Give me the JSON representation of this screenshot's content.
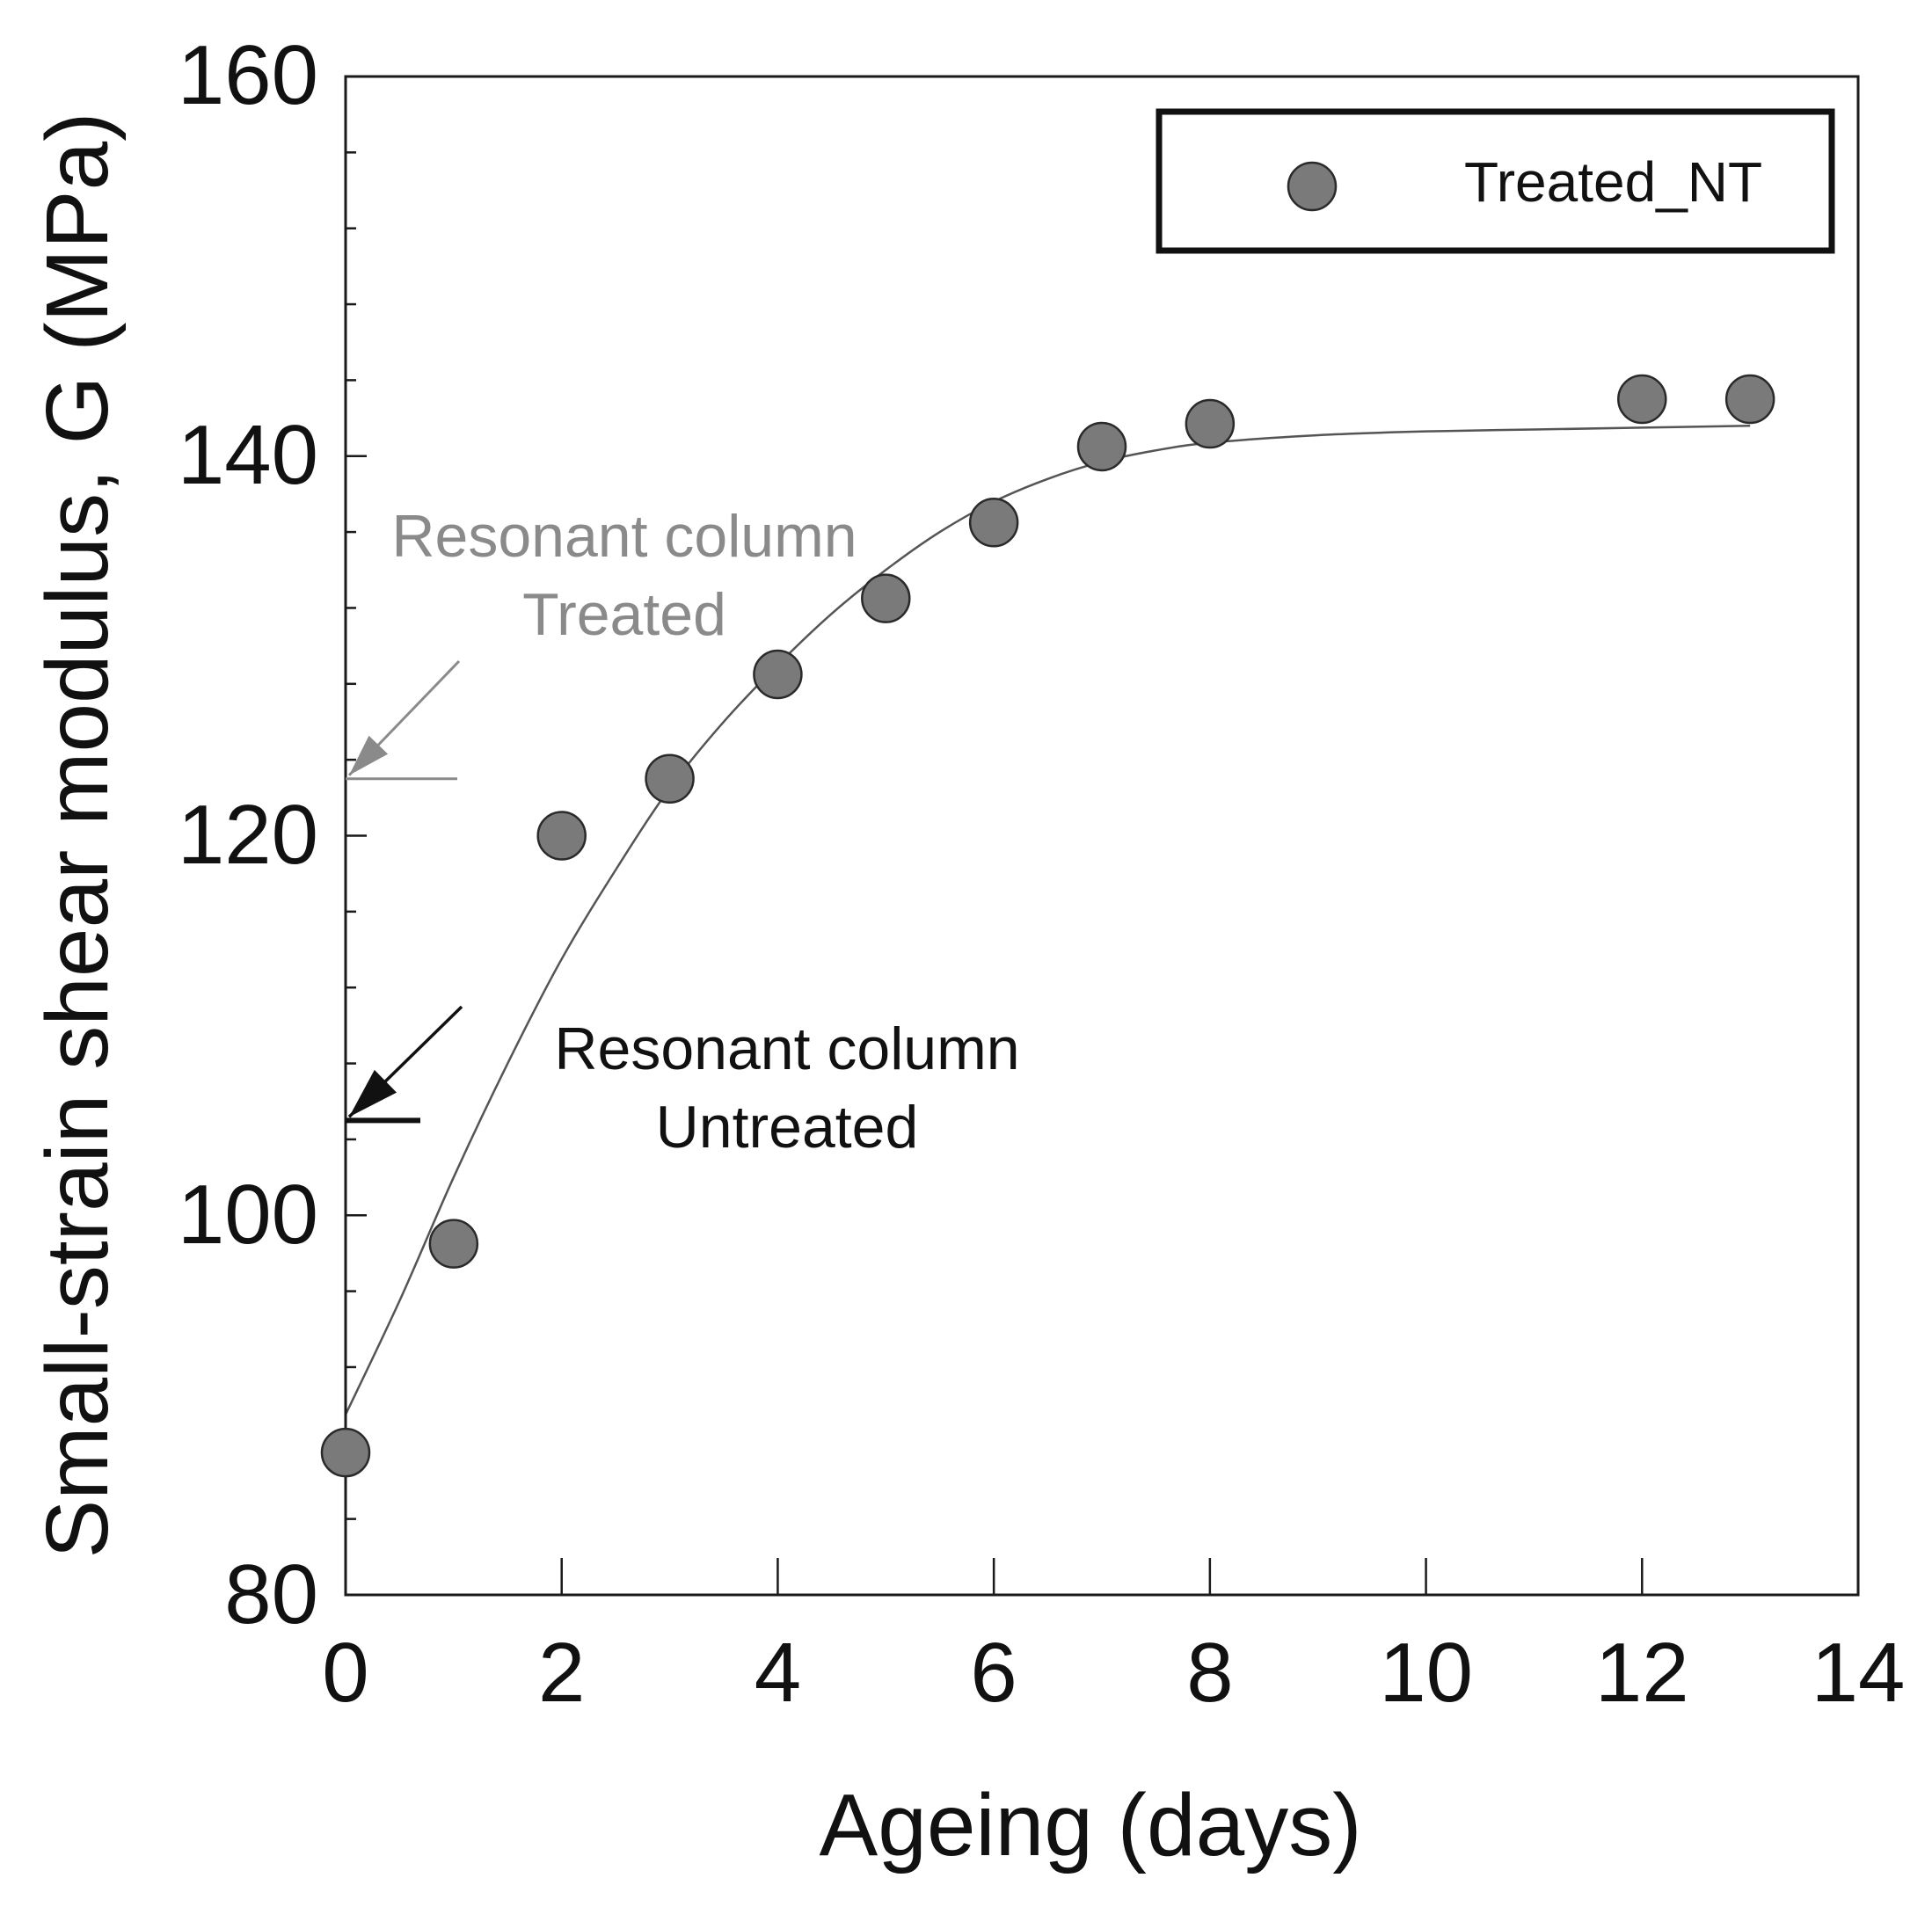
{
  "chart_data": {
    "type": "scatter",
    "xlabel": "Ageing (days)",
    "ylabel": "Small-strain shear modulus, G (MPa)",
    "xlim": [
      0,
      14
    ],
    "ylim": [
      80,
      160
    ],
    "xticks": [
      "0",
      "2",
      "4",
      "6",
      "8",
      "10",
      "12",
      "14"
    ],
    "yticks": [
      "80",
      "100",
      "120",
      "140",
      "160"
    ],
    "legend_position": "top-right",
    "series": [
      {
        "name": "Treated_NT",
        "marker": "circle",
        "color": "#7a7a7a",
        "points": [
          {
            "x": 0,
            "y": 87.5
          },
          {
            "x": 1,
            "y": 98.5
          },
          {
            "x": 2,
            "y": 120
          },
          {
            "x": 3,
            "y": 123
          },
          {
            "x": 4,
            "y": 128.5
          },
          {
            "x": 5,
            "y": 132.5
          },
          {
            "x": 6,
            "y": 136.5
          },
          {
            "x": 7,
            "y": 140.5
          },
          {
            "x": 8,
            "y": 141.7
          },
          {
            "x": 12,
            "y": 143
          },
          {
            "x": 13,
            "y": 143
          }
        ]
      }
    ],
    "fit_curve": {
      "color": "#555555",
      "points": [
        {
          "x": 0,
          "y": 89.5
        },
        {
          "x": 0.5,
          "y": 95.5
        },
        {
          "x": 1,
          "y": 102
        },
        {
          "x": 1.5,
          "y": 108
        },
        {
          "x": 2,
          "y": 113.5
        },
        {
          "x": 2.5,
          "y": 118.2
        },
        {
          "x": 3,
          "y": 122.5
        },
        {
          "x": 3.5,
          "y": 126
        },
        {
          "x": 4,
          "y": 129
        },
        {
          "x": 4.5,
          "y": 131.7
        },
        {
          "x": 5,
          "y": 134
        },
        {
          "x": 5.5,
          "y": 136
        },
        {
          "x": 6,
          "y": 137.6
        },
        {
          "x": 6.5,
          "y": 138.8
        },
        {
          "x": 7,
          "y": 139.7
        },
        {
          "x": 7.5,
          "y": 140.3
        },
        {
          "x": 8,
          "y": 140.7
        },
        {
          "x": 9,
          "y": 141.1
        },
        {
          "x": 10,
          "y": 141.3
        },
        {
          "x": 11,
          "y": 141.4
        },
        {
          "x": 12,
          "y": 141.5
        },
        {
          "x": 13,
          "y": 141.6
        }
      ]
    },
    "annotations": [
      {
        "id": "treated",
        "lines": [
          "Resonant column",
          "Treated"
        ],
        "color": "#8a8a8a",
        "arrow_value": 123
      },
      {
        "id": "untreated",
        "lines": [
          "Resonant column",
          "Untreated"
        ],
        "color": "#111111",
        "arrow_value": 105
      }
    ]
  }
}
